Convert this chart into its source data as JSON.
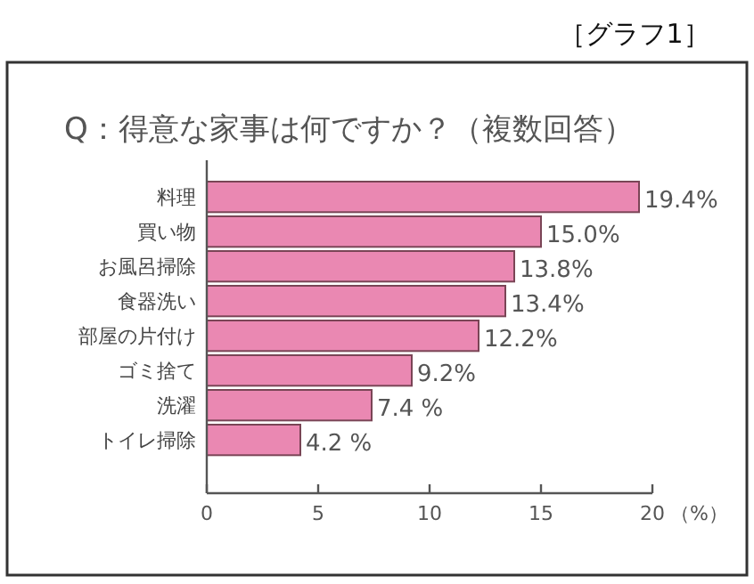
{
  "chart_data": {
    "type": "bar",
    "orientation": "horizontal",
    "title": "Q：得意な家事は何ですか？（複数回答）",
    "xlabel": "（%）",
    "annotations": [
      "［グラフ1］"
    ],
    "categories": [
      "料理",
      "買い物",
      "お風呂掃除",
      "食器洗い",
      "部屋の片付け",
      "ゴミ捨て",
      "洗濯",
      "トイレ掃除"
    ],
    "values": [
      19.4,
      15.0,
      13.8,
      13.4,
      12.2,
      9.2,
      7.4,
      4.2
    ],
    "value_labels": [
      "19.4%",
      "15.0%",
      "13.8%",
      "13.4%",
      "12.2%",
      "9.2%",
      "7.4 %",
      "4.2 %"
    ],
    "color": "#ea88b2",
    "xlim": [
      0,
      20
    ],
    "xticks": [
      0,
      5,
      10,
      15,
      20
    ]
  }
}
